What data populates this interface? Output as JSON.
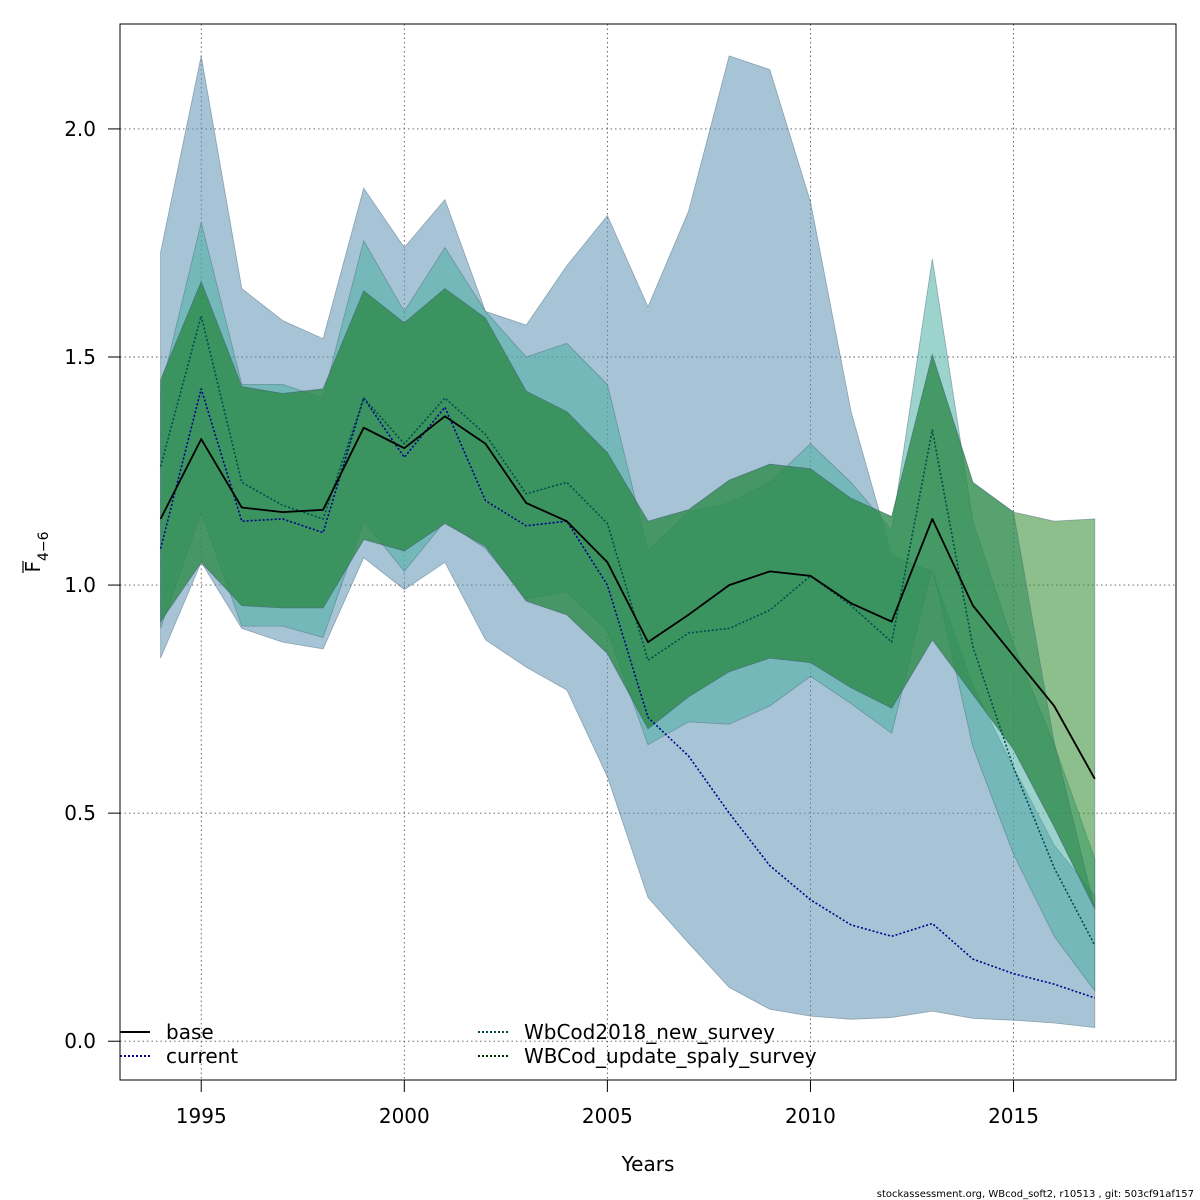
{
  "chart_data": {
    "type": "area",
    "xlabel": "Years",
    "ylabel": {
      "main": "F",
      "sub": "4−6"
    },
    "xlim": [
      1993,
      2019
    ],
    "ylim": [
      -0.085,
      2.23
    ],
    "x_ticks": [
      1995,
      2000,
      2005,
      2010,
      2015
    ],
    "y_ticks": [
      0.0,
      0.5,
      1.0,
      1.5,
      2.0
    ],
    "x_tick_labels": [
      "1995",
      "2000",
      "2005",
      "2010",
      "2015"
    ],
    "y_tick_labels": [
      "0.0",
      "0.5",
      "1.0",
      "1.5",
      "2.0"
    ],
    "grid": true,
    "legend_placement": "bottom-left",
    "x": [
      1994,
      1995,
      1996,
      1997,
      1998,
      1999,
      2000,
      2001,
      2002,
      2003,
      2004,
      2005,
      2006,
      2007,
      2008,
      2009,
      2010,
      2011,
      2012,
      2013,
      2014,
      2015,
      2016,
      2017
    ],
    "series": [
      {
        "name": "current",
        "line_style": "dotted",
        "line_color": "#00008B",
        "band_color": "#5E93B5",
        "band_opacity": 0.55,
        "values": [
          1.08,
          1.43,
          1.14,
          1.145,
          1.115,
          1.41,
          1.28,
          1.39,
          1.185,
          1.13,
          1.14,
          1.0,
          0.71,
          0.625,
          0.5,
          0.385,
          0.31,
          0.255,
          0.23,
          0.258,
          0.18,
          0.148,
          0.125,
          0.095
        ],
        "lower": [
          0.84,
          1.05,
          0.905,
          0.875,
          0.86,
          1.06,
          0.99,
          1.05,
          0.88,
          0.82,
          0.77,
          0.58,
          0.315,
          0.215,
          0.118,
          0.07,
          0.055,
          0.048,
          0.052,
          0.066,
          0.05,
          0.046,
          0.04,
          0.03
        ],
        "upper": [
          1.73,
          2.16,
          1.65,
          1.58,
          1.54,
          1.87,
          1.74,
          1.845,
          1.6,
          1.57,
          1.7,
          1.81,
          1.61,
          1.82,
          2.16,
          2.13,
          1.84,
          1.38,
          1.065,
          1.03,
          0.78,
          0.6,
          0.43,
          0.32
        ]
      },
      {
        "name": "WbCod2018_new_survey",
        "line_style": "dotted",
        "line_color": "#004D4D",
        "band_color": "#4AAFA3",
        "band_opacity": 0.55,
        "values": [
          1.26,
          1.59,
          1.225,
          1.175,
          1.145,
          1.41,
          1.31,
          1.41,
          1.33,
          1.2,
          1.225,
          1.135,
          0.835,
          0.895,
          0.905,
          0.945,
          1.02,
          0.955,
          0.875,
          1.34,
          0.865,
          0.6,
          0.38,
          0.21
        ],
        "lower": [
          0.905,
          1.16,
          0.91,
          0.91,
          0.885,
          1.14,
          1.03,
          1.14,
          1.08,
          0.97,
          0.985,
          0.9,
          0.65,
          0.7,
          0.695,
          0.735,
          0.8,
          0.74,
          0.675,
          1.04,
          0.645,
          0.41,
          0.23,
          0.11
        ],
        "upper": [
          1.425,
          1.795,
          1.44,
          1.44,
          1.41,
          1.755,
          1.6,
          1.74,
          1.6,
          1.5,
          1.53,
          1.44,
          1.075,
          1.16,
          1.18,
          1.225,
          1.31,
          1.225,
          1.12,
          1.715,
          1.14,
          0.87,
          0.65,
          0.4
        ]
      },
      {
        "name": "WBCod_update_spaly_survey",
        "line_style": "dotted",
        "line_color": "#002B00",
        "band_color": "#2E8B2E",
        "band_opacity": 0.55,
        "values": [
          1.145,
          1.32,
          1.17,
          1.16,
          1.165,
          1.345,
          1.3,
          1.37,
          1.31,
          1.18,
          1.14,
          1.05,
          0.875,
          0.935,
          1.0,
          1.03,
          1.02,
          0.96,
          0.92,
          1.145,
          0.955,
          0.845,
          0.735,
          0.575
        ],
        "lower": [
          0.92,
          1.05,
          0.955,
          0.95,
          0.95,
          1.1,
          1.075,
          1.135,
          1.085,
          0.965,
          0.935,
          0.85,
          0.685,
          0.755,
          0.81,
          0.84,
          0.83,
          0.775,
          0.73,
          0.88,
          0.76,
          0.64,
          0.47,
          0.29
        ],
        "upper": [
          1.45,
          1.665,
          1.435,
          1.42,
          1.43,
          1.645,
          1.575,
          1.65,
          1.585,
          1.425,
          1.38,
          1.29,
          1.14,
          1.165,
          1.23,
          1.265,
          1.255,
          1.19,
          1.15,
          1.505,
          1.225,
          1.16,
          1.14,
          1.145
        ]
      },
      {
        "name": "base",
        "line_style": "solid",
        "line_color": "#000000",
        "band_color": "#2E8B57",
        "band_opacity": 0.55,
        "values": [
          1.145,
          1.32,
          1.17,
          1.16,
          1.165,
          1.345,
          1.3,
          1.37,
          1.31,
          1.18,
          1.14,
          1.05,
          0.875,
          0.935,
          1.0,
          1.03,
          1.02,
          0.96,
          0.92,
          1.145,
          0.955,
          0.845,
          0.735,
          0.575
        ],
        "lower": [
          0.92,
          1.05,
          0.955,
          0.95,
          0.95,
          1.1,
          1.075,
          1.135,
          1.085,
          0.965,
          0.935,
          0.85,
          0.685,
          0.755,
          0.81,
          0.84,
          0.83,
          0.775,
          0.73,
          0.88,
          0.76,
          0.64,
          0.47,
          0.29
        ],
        "upper": [
          1.45,
          1.665,
          1.435,
          1.42,
          1.43,
          1.645,
          1.575,
          1.65,
          1.585,
          1.425,
          1.38,
          1.29,
          1.14,
          1.165,
          1.23,
          1.265,
          1.255,
          1.19,
          1.15,
          1.505,
          1.225,
          1.16,
          0.655,
          0.29
        ]
      }
    ],
    "legend": [
      {
        "name": "base",
        "line_style": "solid",
        "line_color": "#000000"
      },
      {
        "name": "current",
        "line_style": "dotted",
        "line_color": "#00008B"
      },
      {
        "name": "WbCod2018_new_survey",
        "line_style": "dotted",
        "line_color": "#004D4D"
      },
      {
        "name": "WBCod_update_spaly_survey",
        "line_style": "dotted",
        "line_color": "#002B00"
      }
    ]
  },
  "footer": "stockassessment.org, WBcod_soft2, r10513 , git: 503cf91af157"
}
